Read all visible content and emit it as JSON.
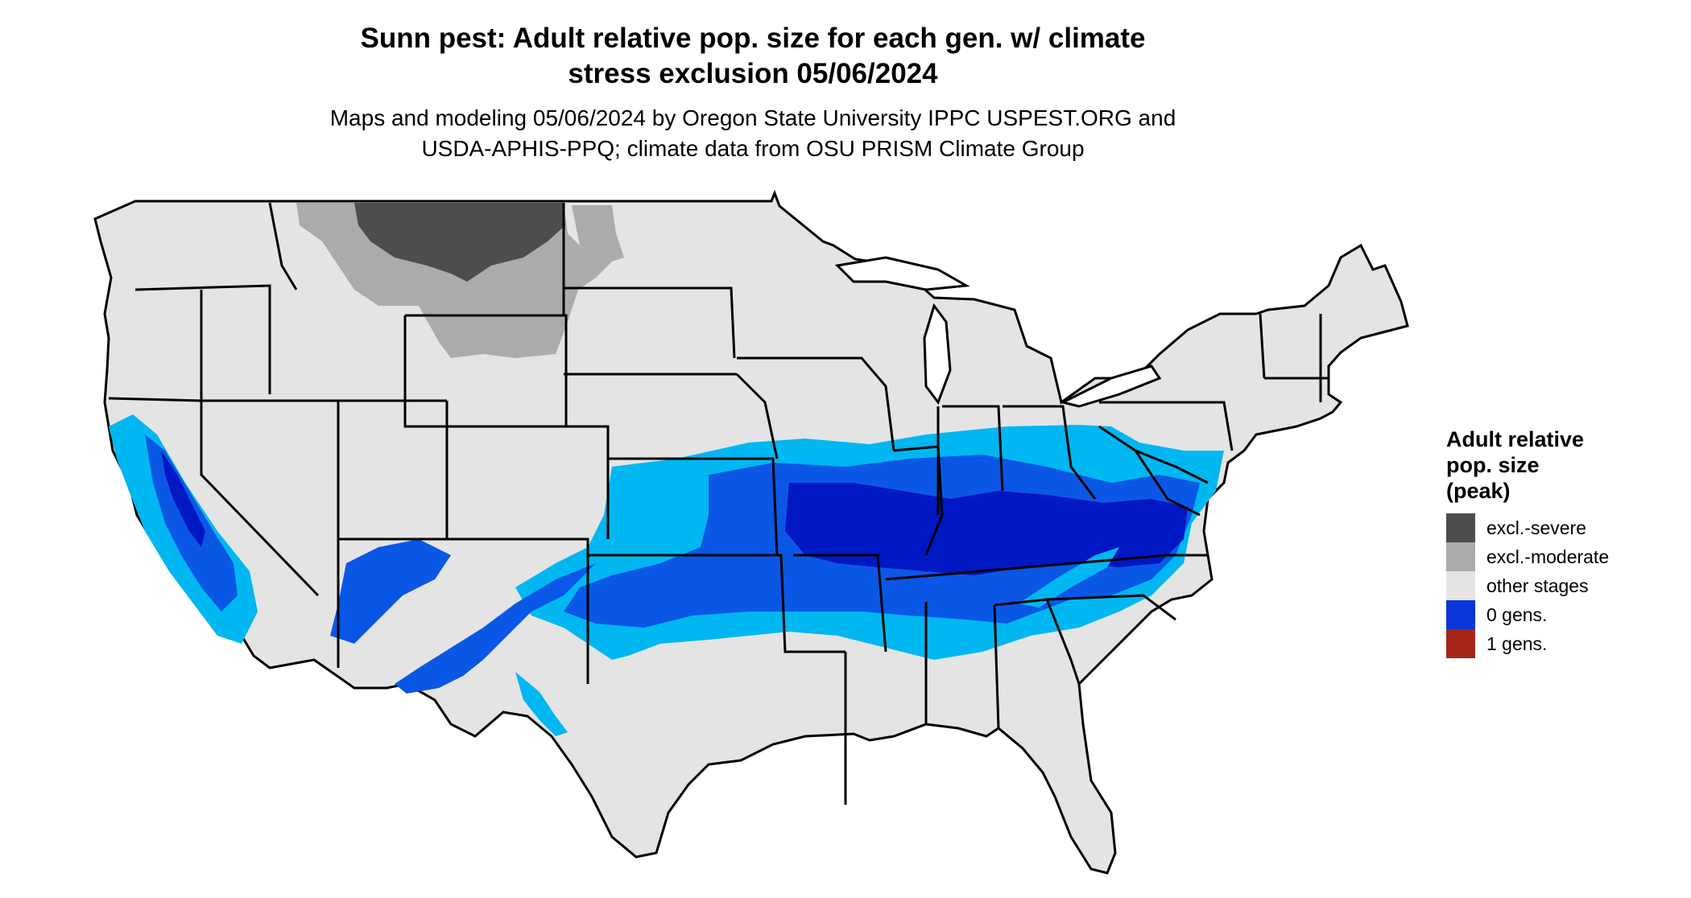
{
  "title_line1": "Sunn pest: Adult relative pop. size for each gen. w/ climate",
  "title_line2": "stress exclusion 05/06/2024",
  "subtitle_line1": "Maps and modeling 05/06/2024 by Oregon State University IPPC USPEST.ORG and",
  "subtitle_line2": "USDA-APHIS-PPQ; climate data from OSU PRISM Climate Group",
  "legend": {
    "title_line1": "Adult relative",
    "title_line2": "pop. size",
    "title_line3": "(peak)",
    "items": [
      {
        "label": "excl.-severe",
        "color": "#4d4d4d"
      },
      {
        "label": "excl.-moderate",
        "color": "#ababab"
      },
      {
        "label": "other stages",
        "color": "#e4e4e4"
      },
      {
        "label": "0 gens.",
        "color": "#0a36d9"
      },
      {
        "label": "1 gens.",
        "color": "#a6261a"
      }
    ]
  },
  "colors": {
    "land": "#e4e4e4",
    "excl_severe": "#4d4d4d",
    "excl_moderate": "#ababab",
    "light_blue": "#00b7f1",
    "mid_blue": "#0a57e6",
    "dark_blue": "#0017c4",
    "border": "#000000"
  }
}
